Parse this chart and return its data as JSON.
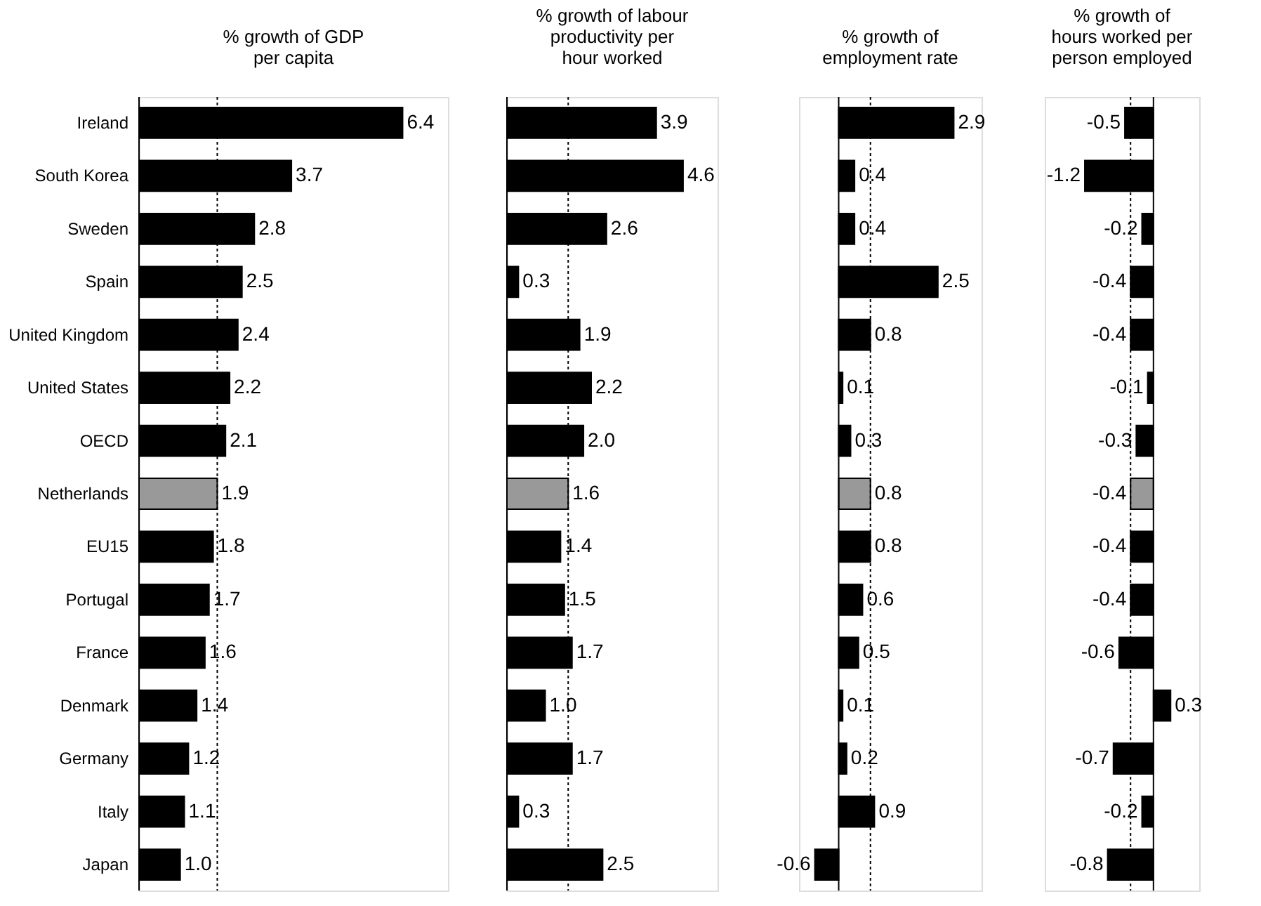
{
  "chart_data": [
    {
      "type": "bar",
      "orientation": "horizontal",
      "title": "% growth of GDP per capita",
      "categories": [
        "Ireland",
        "South Korea",
        "Sweden",
        "Spain",
        "United Kingdom",
        "United States",
        "OECD",
        "Netherlands",
        "EU15",
        "Portugal",
        "France",
        "Denmark",
        "Germany",
        "Italy",
        "Japan"
      ],
      "values": [
        6.4,
        3.7,
        2.8,
        2.5,
        2.4,
        2.2,
        2.1,
        1.9,
        1.8,
        1.7,
        1.6,
        1.4,
        1.2,
        1.1,
        1.0
      ],
      "value_labels": [
        "6.4",
        "3.7",
        "2.8",
        "2.5",
        "2.4",
        "2.2",
        "2.1",
        "1.9",
        "1.8",
        "1.7",
        "1.6",
        "1.4",
        "1.2",
        "1.1",
        "1.0"
      ],
      "colors": [
        "#000000",
        "#000000",
        "#000000",
        "#000000",
        "#000000",
        "#000000",
        "#000000",
        "#999999",
        "#000000",
        "#000000",
        "#000000",
        "#000000",
        "#000000",
        "#000000",
        "#000000"
      ],
      "xlim": [
        0,
        7.5
      ],
      "ref_lines": [
        {
          "axis": "x",
          "value": 1.9,
          "color": "#000000",
          "line_style": "dotted"
        }
      ],
      "tick_labels": "y"
    },
    {
      "type": "bar",
      "orientation": "horizontal",
      "title": "% growth of labour productivity per hour worked",
      "categories": [
        null,
        null,
        null,
        null,
        null,
        null,
        null,
        null,
        null,
        null,
        null,
        null,
        null,
        null,
        null
      ],
      "values": [
        3.9,
        4.6,
        2.6,
        0.3,
        1.9,
        2.2,
        2.0,
        1.6,
        1.4,
        1.5,
        1.7,
        1.0,
        1.7,
        0.3,
        2.5
      ],
      "value_labels": [
        "3.9",
        "4.6",
        "2.6",
        "0.3",
        "1.9",
        "2.2",
        "2.0",
        "1.6",
        "1.4",
        "1.5",
        "1.7",
        "1.0",
        "1.7",
        "0.3",
        "2.5"
      ],
      "colors": [
        "#000000",
        "#000000",
        "#000000",
        "#000000",
        "#000000",
        "#000000",
        "#000000",
        "#999999",
        "#000000",
        "#000000",
        "#000000",
        "#000000",
        "#000000",
        "#000000",
        "#000000"
      ],
      "xlim": [
        0,
        5.5
      ],
      "ref_lines": [
        {
          "axis": "x",
          "value": 1.6,
          "color": "#000000",
          "line_style": "dotted"
        }
      ],
      "tick_labels": false
    },
    {
      "type": "bar",
      "orientation": "horizontal",
      "title": "% growth of employment rate",
      "categories": [
        null,
        null,
        null,
        null,
        null,
        null,
        null,
        null,
        null,
        null,
        null,
        null,
        null,
        null,
        null
      ],
      "values": [
        2.9,
        0.4,
        0.4,
        2.5,
        0.8,
        0.1,
        0.3,
        0.8,
        0.8,
        0.6,
        0.5,
        0.1,
        0.2,
        0.9,
        -0.6
      ],
      "value_labels": [
        "2.9",
        "0.4",
        "0.4",
        "2.5",
        "0.8",
        "0.1",
        "0.3",
        "0.8",
        "0.8",
        "0.6",
        "0.5",
        "0.1",
        "0.2",
        "0.9",
        "-0.6"
      ],
      "colors": [
        "#000000",
        "#000000",
        "#000000",
        "#000000",
        "#000000",
        "#000000",
        "#000000",
        "#999999",
        "#000000",
        "#000000",
        "#000000",
        "#000000",
        "#000000",
        "#000000",
        "#000000"
      ],
      "xlim": [
        -1.0,
        3.6
      ],
      "ref_lines": [
        {
          "axis": "x",
          "value": 0.8,
          "color": "#000000",
          "line_style": "dotted"
        }
      ],
      "tick_labels": false
    },
    {
      "type": "bar",
      "orientation": "horizontal",
      "title": "% growth of hours worked per person employed",
      "categories": [
        null,
        null,
        null,
        null,
        null,
        null,
        null,
        null,
        null,
        null,
        null,
        null,
        null,
        null,
        null
      ],
      "values": [
        -0.5,
        -1.2,
        -0.2,
        -0.4,
        -0.4,
        -0.1,
        -0.3,
        -0.4,
        -0.4,
        -0.4,
        -0.6,
        0.3,
        -0.7,
        -0.2,
        -0.8
      ],
      "value_labels": [
        "-0.5",
        "-1.2",
        "-0.2",
        "-0.4",
        "-0.4",
        "-0.1",
        "-0.3",
        "-0.4",
        "-0.4",
        "-0.4",
        "-0.6",
        "0.3",
        "-0.7",
        "-0.2",
        "-0.8"
      ],
      "colors": [
        "#000000",
        "#000000",
        "#000000",
        "#000000",
        "#000000",
        "#000000",
        "#000000",
        "#999999",
        "#000000",
        "#000000",
        "#000000",
        "#000000",
        "#000000",
        "#000000",
        "#000000"
      ],
      "xlim": [
        -1.9,
        0.8
      ],
      "ref_lines": [
        {
          "axis": "x",
          "value": -0.4,
          "color": "#000000",
          "line_style": "dotted"
        }
      ],
      "tick_labels": false
    }
  ]
}
